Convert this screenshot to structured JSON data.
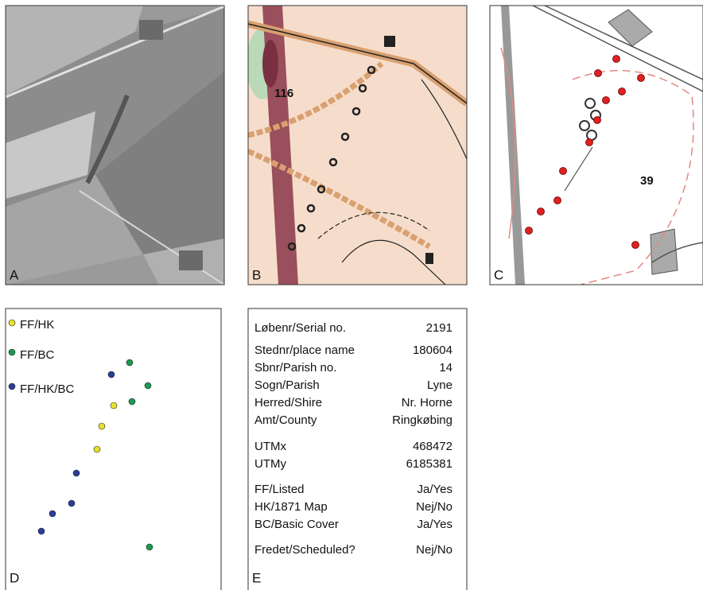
{
  "panel_labels": [
    "A",
    "B",
    "C",
    "D",
    "E"
  ],
  "map_labels": [
    "116",
    "39"
  ],
  "legend": [
    "FF/HK",
    "FF/BC",
    "FF/HK/BC"
  ],
  "table": {
    "rows": [
      [
        "Løbenr/Serial no.",
        "2191"
      ],
      [
        "Stednr/place name",
        "180604"
      ],
      [
        "Sbnr/Parish no.",
        "14"
      ],
      [
        "Sogn/Parish",
        "Lyne"
      ],
      [
        "Herred/Shire",
        "Nr. Horne"
      ],
      [
        "Amt/County",
        "Ringkøbing"
      ],
      [
        "UTMx",
        "468472"
      ],
      [
        "UTMy",
        "6185381"
      ],
      [
        "FF/Listed",
        "Ja/Yes"
      ],
      [
        "HK/1871 Map",
        "Nej/No"
      ],
      [
        "BC/Basic Cover",
        "Ja/Yes"
      ],
      [
        "Fredet/Scheduled?",
        "Nej/No"
      ]
    ]
  }
}
